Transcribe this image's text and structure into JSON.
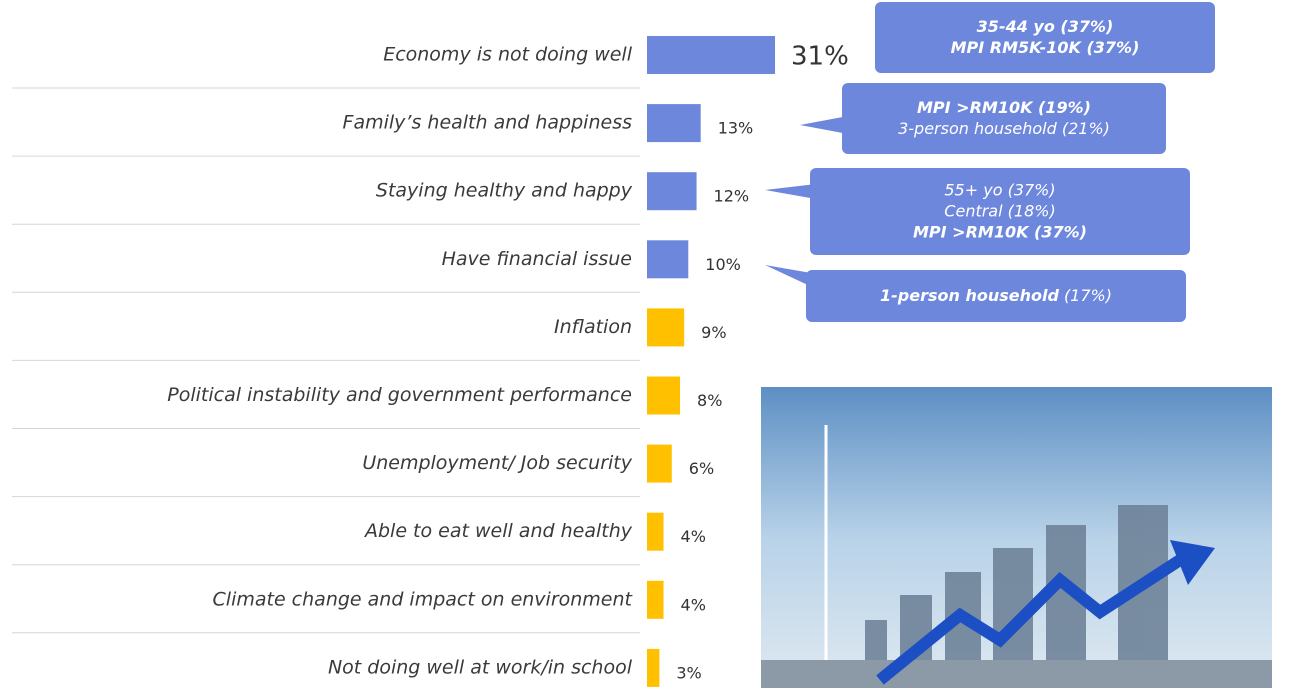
{
  "chart_data": {
    "type": "bar",
    "orientation": "horizontal",
    "categories": [
      "Economy is not doing well",
      "Family’s health and happiness",
      "Staying healthy and happy",
      "Have financial issue",
      "Inflation",
      "Political instability and government performance",
      "Unemployment/ Job security",
      "Able to eat well and healthy",
      "Climate change and impact on environment",
      "Not doing well at work/in school"
    ],
    "values": [
      31,
      13,
      12,
      10,
      9,
      8,
      6,
      4,
      4,
      3
    ],
    "value_labels": [
      "31%",
      "13%",
      "12%",
      "10%",
      "9%",
      "8%",
      "6%",
      "4%",
      "4%",
      "3%"
    ],
    "colors": [
      "#6d87dd",
      "#6d87dd",
      "#6d87dd",
      "#6d87dd",
      "#ffc000",
      "#ffc000",
      "#ffc000",
      "#ffc000",
      "#ffc000",
      "#ffc000"
    ],
    "annotations": [
      {
        "lines": [
          [
            {
              "text": "35-44 yo (37%)",
              "bold": true
            }
          ],
          [
            {
              "text": "MPI RM5K-10K (37%)",
              "bold": true
            }
          ]
        ]
      },
      {
        "lines": [
          [
            {
              "text": "MPI >RM10K (19%)",
              "bold": true
            }
          ],
          [
            {
              "text": "3-person household (21%)",
              "bold": false
            }
          ]
        ]
      },
      {
        "lines": [
          [
            {
              "text": "55+ yo (37%)",
              "bold": false
            }
          ],
          [
            {
              "text": "Central (18%)",
              "bold": false
            }
          ],
          [
            {
              "text": "MPI >RM10K (37%)",
              "bold": true
            }
          ]
        ]
      },
      {
        "lines": [
          [
            {
              "text": "1-person household",
              "bold": true
            },
            {
              "text": "(17%)",
              "bold": false
            }
          ]
        ]
      }
    ]
  }
}
